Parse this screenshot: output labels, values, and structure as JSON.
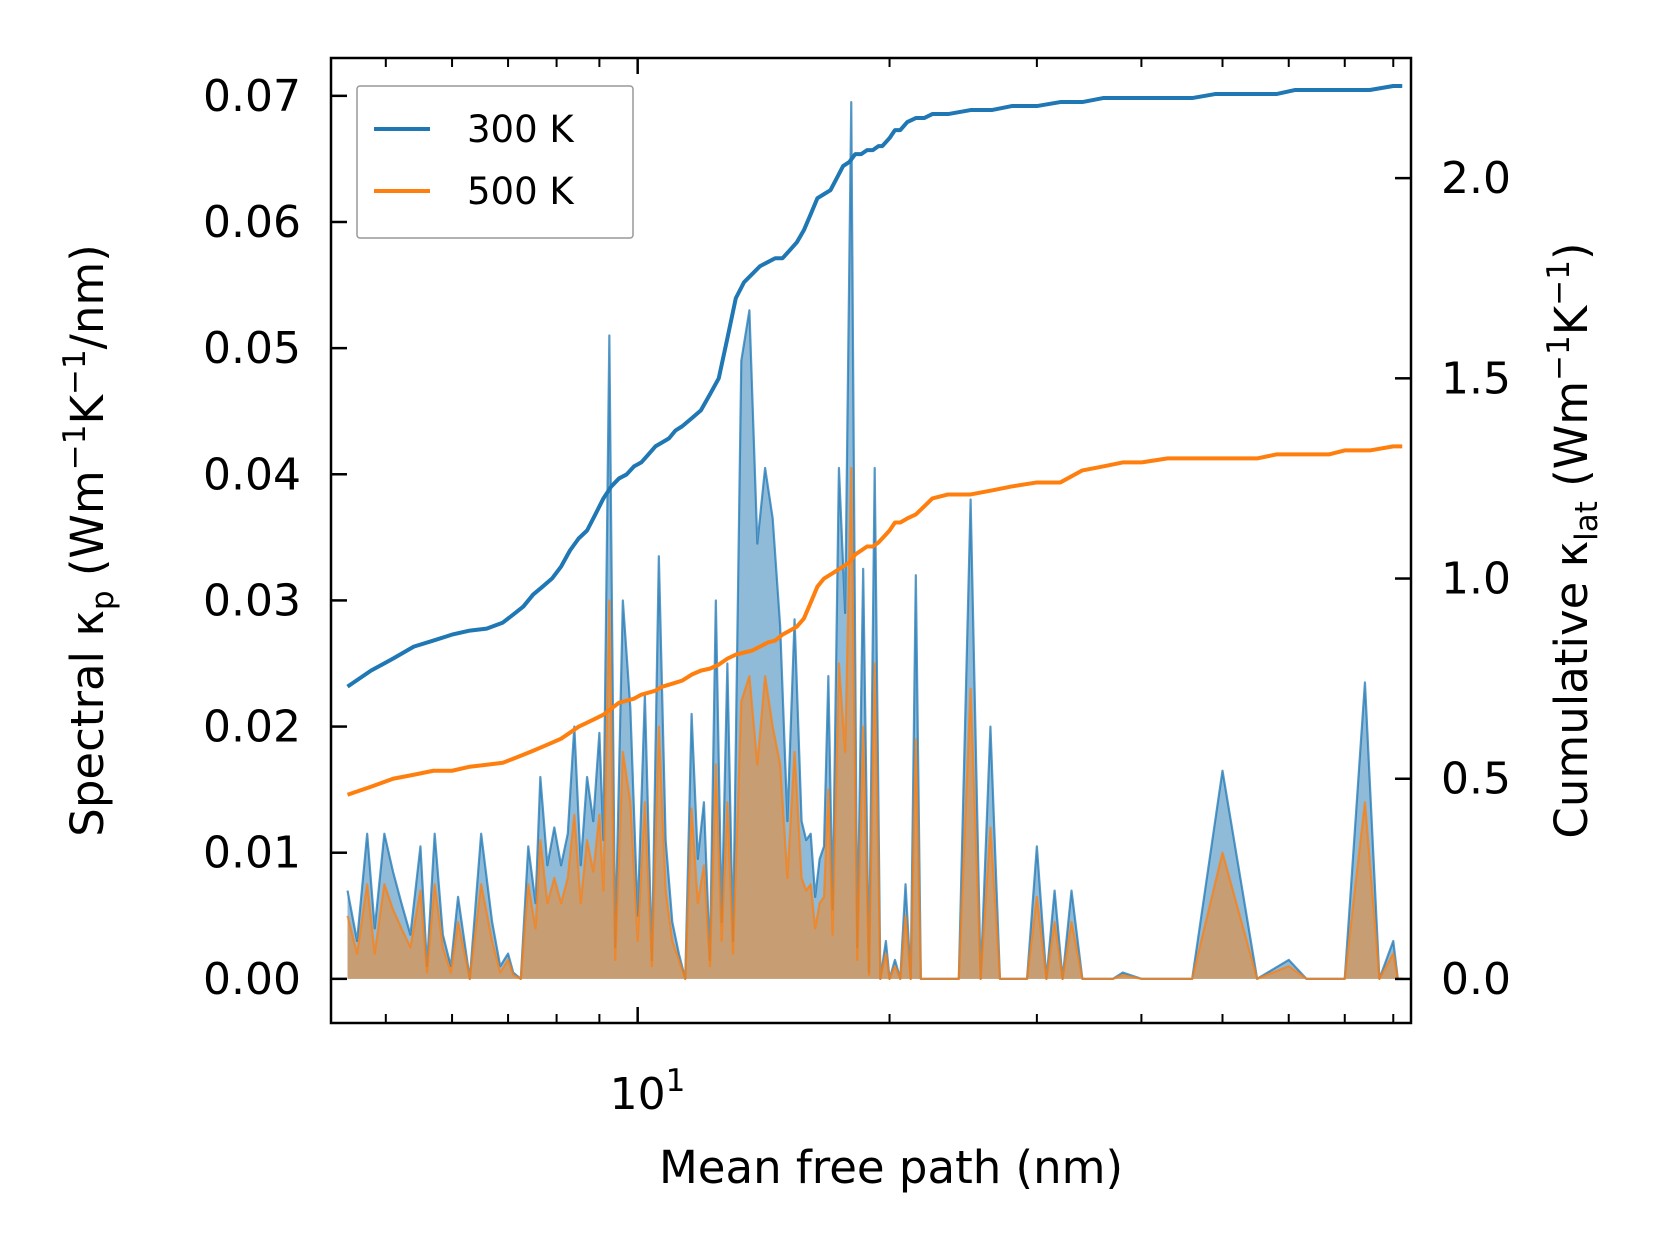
{
  "chart_data": {
    "type": "area",
    "xscale": "log",
    "xlim": [
      4.3,
      84
    ],
    "xlabel": "Mean free path (nm)",
    "x_tick_labels": [
      {
        "base": "10",
        "exp": "1",
        "value": 10
      }
    ],
    "left_axis": {
      "label_parts": [
        "Spectral ",
        "κ",
        "p",
        " (Wm",
        "−1",
        "K",
        "−1",
        "/nm)"
      ],
      "ylim": [
        -0.0035,
        0.073
      ],
      "ticks": [
        0,
        0.01,
        0.02,
        0.03,
        0.04,
        0.05,
        0.06,
        0.07
      ],
      "tick_labels": [
        "0.00",
        "0.01",
        "0.02",
        "0.03",
        "0.04",
        "0.05",
        "0.06",
        "0.07"
      ]
    },
    "right_axis": {
      "label_parts": [
        "Cumulative ",
        "κ",
        "lat",
        " (Wm",
        "−1",
        "K",
        "−1",
        ")"
      ],
      "ylim": [
        -0.11,
        2.3
      ],
      "ticks": [
        0,
        0.5,
        1.0,
        1.5,
        2.0
      ],
      "tick_labels": [
        "0.0",
        "0.5",
        "1.0",
        "1.5",
        "2.0"
      ]
    },
    "legend": {
      "location": "upper-left",
      "entries": [
        {
          "name": "300 K",
          "color": "#1f77b4"
        },
        {
          "name": "500 K",
          "color": "#ff7f0e"
        }
      ]
    },
    "series": [
      {
        "name": "300 K",
        "color": "#1f77b4",
        "spectral": {
          "x": [
            4.5,
            4.62,
            4.75,
            4.85,
            4.98,
            5.1,
            5.22,
            5.35,
            5.5,
            5.6,
            5.72,
            5.85,
            5.98,
            6.1,
            6.3,
            6.5,
            6.7,
            6.85,
            7.0,
            7.1,
            7.25,
            7.4,
            7.55,
            7.65,
            7.8,
            7.95,
            8.1,
            8.25,
            8.4,
            8.55,
            8.7,
            8.85,
            9.0,
            9.1,
            9.25,
            9.4,
            9.6,
            9.8,
            10.0,
            10.2,
            10.4,
            10.6,
            10.8,
            11.0,
            11.2,
            11.4,
            11.6,
            11.8,
            12.0,
            12.2,
            12.4,
            12.6,
            12.8,
            13.0,
            13.3,
            13.6,
            13.9,
            14.2,
            14.5,
            14.8,
            15.1,
            15.4,
            15.7,
            15.9,
            16.1,
            16.3,
            16.5,
            16.7,
            16.9,
            17.1,
            17.4,
            17.7,
            18.0,
            18.3,
            18.6,
            18.9,
            19.2,
            19.5,
            19.8,
            20.0,
            20.3,
            20.6,
            20.9,
            21.2,
            21.5,
            21.8,
            22.1,
            22.4,
            22.8,
            23.5,
            24.2,
            25.0,
            25.7,
            26.4,
            27.1,
            27.8,
            28.5,
            29.2,
            30.0,
            30.8,
            31.5,
            32.2,
            33.0,
            34.0,
            35.0,
            36.0,
            37.0,
            38.0,
            40.0,
            42.0,
            44.0,
            46.0,
            50.0,
            55.0,
            60.0,
            63.0,
            65.0,
            66.5,
            68.0,
            70.0,
            74.0,
            77.0,
            80.0,
            81.0,
            82.0
          ],
          "y": [
            0.007,
            0.003,
            0.0115,
            0.004,
            0.0115,
            0.0085,
            0.006,
            0.0035,
            0.0105,
            0.001,
            0.0115,
            0.0035,
            0.001,
            0.0065,
            0.0,
            0.0115,
            0.0045,
            0.001,
            0.002,
            0.0005,
            0.0,
            0.0105,
            0.006,
            0.016,
            0.009,
            0.012,
            0.009,
            0.0115,
            0.02,
            0.009,
            0.016,
            0.0125,
            0.0195,
            0.011,
            0.051,
            0.0025,
            0.03,
            0.0215,
            0.005,
            0.0225,
            0.0015,
            0.0335,
            0.011,
            0.0045,
            0.002,
            0.0,
            0.021,
            0.0095,
            0.014,
            0.0015,
            0.03,
            0.0045,
            0.025,
            0.003,
            0.049,
            0.053,
            0.0345,
            0.0405,
            0.0365,
            0.028,
            0.0125,
            0.0285,
            0.0125,
            0.011,
            0.0115,
            0.0065,
            0.0095,
            0.0105,
            0.024,
            0.0055,
            0.0405,
            0.029,
            0.0695,
            0.0025,
            0.0325,
            0.0005,
            0.0405,
            0.0,
            0.003,
            0.0,
            0.0015,
            0.0,
            0.0075,
            0.0,
            0.032,
            0.0,
            0.0,
            0.0,
            0.0,
            0.0,
            0.0,
            0.038,
            0.0,
            0.02,
            0.0,
            0.0,
            0.0,
            0.0,
            0.0105,
            0.0,
            0.007,
            0.0,
            0.007,
            0.0,
            0.0,
            0.0,
            0.0,
            0.0005,
            0.0,
            0.0,
            0.0,
            0.0,
            0.0165,
            0.0,
            0.0015,
            0.0,
            0.0,
            0.0,
            0.0,
            0.0,
            0.0235,
            0.0,
            0.003,
            0.0,
            0.0
          ]
        },
        "cumulative": {
          "x": [
            4.5,
            4.8,
            5.1,
            5.4,
            5.7,
            6.0,
            6.3,
            6.6,
            6.9,
            7.1,
            7.3,
            7.5,
            7.7,
            7.9,
            8.1,
            8.3,
            8.5,
            8.7,
            8.9,
            9.1,
            9.3,
            9.5,
            9.7,
            9.9,
            10.1,
            10.3,
            10.5,
            10.7,
            10.9,
            11.1,
            11.3,
            11.6,
            11.9,
            12.2,
            12.5,
            12.8,
            13.1,
            13.4,
            13.7,
            14.0,
            14.3,
            14.6,
            14.9,
            15.2,
            15.5,
            15.8,
            16.1,
            16.4,
            16.7,
            17.0,
            17.3,
            17.6,
            17.9,
            18.2,
            18.5,
            18.8,
            19.1,
            19.4,
            19.6,
            19.8,
            20.0,
            20.3,
            20.6,
            21.0,
            21.5,
            22.0,
            22.5,
            23.5,
            25.0,
            26.5,
            28.0,
            30.0,
            32.0,
            34.0,
            36.0,
            38.0,
            40.0,
            43.0,
            46.0,
            49.0,
            52.0,
            55.0,
            58.0,
            61.0,
            64.0,
            67.0,
            70.0,
            75.0,
            80.0,
            82.0
          ],
          "y": [
            0.73,
            0.77,
            0.8,
            0.83,
            0.845,
            0.86,
            0.87,
            0.875,
            0.89,
            0.91,
            0.93,
            0.96,
            0.98,
            1.0,
            1.03,
            1.07,
            1.1,
            1.12,
            1.16,
            1.2,
            1.23,
            1.25,
            1.26,
            1.28,
            1.29,
            1.31,
            1.33,
            1.34,
            1.35,
            1.37,
            1.38,
            1.4,
            1.42,
            1.46,
            1.5,
            1.6,
            1.7,
            1.74,
            1.76,
            1.78,
            1.79,
            1.8,
            1.8,
            1.82,
            1.84,
            1.87,
            1.91,
            1.95,
            1.96,
            1.97,
            2.0,
            2.03,
            2.04,
            2.06,
            2.06,
            2.07,
            2.07,
            2.08,
            2.08,
            2.09,
            2.1,
            2.12,
            2.12,
            2.14,
            2.15,
            2.15,
            2.16,
            2.16,
            2.17,
            2.17,
            2.18,
            2.18,
            2.19,
            2.19,
            2.2,
            2.2,
            2.2,
            2.2,
            2.2,
            2.21,
            2.21,
            2.21,
            2.21,
            2.22,
            2.22,
            2.22,
            2.22,
            2.22,
            2.23,
            2.23
          ]
        }
      },
      {
        "name": "500 K",
        "color": "#ff7f0e",
        "spectral": {
          "x": [
            4.5,
            4.62,
            4.75,
            4.85,
            4.98,
            5.1,
            5.22,
            5.35,
            5.5,
            5.6,
            5.72,
            5.85,
            5.98,
            6.1,
            6.3,
            6.5,
            6.7,
            6.85,
            7.0,
            7.1,
            7.25,
            7.4,
            7.55,
            7.65,
            7.8,
            7.95,
            8.1,
            8.25,
            8.4,
            8.55,
            8.7,
            8.85,
            9.0,
            9.1,
            9.25,
            9.4,
            9.6,
            9.8,
            10.0,
            10.2,
            10.4,
            10.6,
            10.8,
            11.0,
            11.2,
            11.4,
            11.6,
            11.8,
            12.0,
            12.2,
            12.4,
            12.6,
            12.8,
            13.0,
            13.3,
            13.6,
            13.9,
            14.2,
            14.5,
            14.8,
            15.1,
            15.4,
            15.7,
            15.9,
            16.1,
            16.3,
            16.5,
            16.7,
            16.9,
            17.1,
            17.4,
            17.7,
            18.0,
            18.3,
            18.6,
            18.9,
            19.2,
            19.5,
            19.8,
            20.0,
            20.3,
            20.6,
            20.9,
            21.2,
            21.5,
            21.8,
            22.1,
            22.4,
            22.8,
            23.5,
            24.2,
            25.0,
            25.7,
            26.4,
            27.1,
            27.8,
            28.5,
            29.2,
            30.0,
            30.8,
            31.5,
            32.2,
            33.0,
            34.0,
            35.0,
            36.0,
            37.0,
            38.0,
            40.0,
            42.0,
            44.0,
            46.0,
            50.0,
            55.0,
            60.0,
            63.0,
            65.0,
            66.5,
            68.0,
            70.0,
            74.0,
            77.0,
            80.0,
            81.0,
            82.0
          ],
          "y": [
            0.005,
            0.002,
            0.0075,
            0.002,
            0.0075,
            0.0055,
            0.004,
            0.0025,
            0.007,
            0.0005,
            0.0075,
            0.0025,
            0.0005,
            0.0045,
            0.0,
            0.0075,
            0.003,
            0.0005,
            0.0015,
            0.0003,
            0.0,
            0.0075,
            0.004,
            0.011,
            0.006,
            0.008,
            0.006,
            0.008,
            0.013,
            0.006,
            0.011,
            0.0085,
            0.013,
            0.007,
            0.03,
            0.0015,
            0.018,
            0.014,
            0.003,
            0.014,
            0.001,
            0.02,
            0.007,
            0.003,
            0.0015,
            0.0,
            0.0135,
            0.006,
            0.009,
            0.001,
            0.017,
            0.003,
            0.014,
            0.002,
            0.022,
            0.024,
            0.017,
            0.024,
            0.02,
            0.017,
            0.008,
            0.018,
            0.008,
            0.007,
            0.0075,
            0.004,
            0.006,
            0.0065,
            0.015,
            0.0035,
            0.025,
            0.018,
            0.0405,
            0.0015,
            0.02,
            0.0003,
            0.025,
            0.0,
            0.002,
            0.0,
            0.001,
            0.0,
            0.005,
            0.0,
            0.019,
            0.0,
            0.0,
            0.0,
            0.0,
            0.0,
            0.0,
            0.023,
            0.0,
            0.012,
            0.0,
            0.0,
            0.0,
            0.0,
            0.0065,
            0.0,
            0.0045,
            0.0,
            0.0045,
            0.0,
            0.0,
            0.0,
            0.0,
            0.0003,
            0.0,
            0.0,
            0.0,
            0.0,
            0.01,
            0.0,
            0.001,
            0.0,
            0.0,
            0.0,
            0.0,
            0.0,
            0.014,
            0.0,
            0.002,
            0.0,
            0.0
          ]
        },
        "cumulative": {
          "x": [
            4.5,
            4.8,
            5.1,
            5.4,
            5.7,
            6.0,
            6.3,
            6.6,
            6.9,
            7.1,
            7.3,
            7.5,
            7.7,
            7.9,
            8.1,
            8.3,
            8.5,
            8.7,
            8.9,
            9.1,
            9.3,
            9.5,
            9.7,
            9.9,
            10.1,
            10.3,
            10.5,
            10.7,
            10.9,
            11.1,
            11.3,
            11.6,
            11.9,
            12.2,
            12.5,
            12.8,
            13.1,
            13.4,
            13.7,
            14.0,
            14.3,
            14.6,
            14.9,
            15.2,
            15.5,
            15.8,
            16.1,
            16.4,
            16.7,
            17.0,
            17.3,
            17.6,
            17.9,
            18.2,
            18.5,
            18.8,
            19.1,
            19.4,
            19.6,
            19.8,
            20.0,
            20.3,
            20.6,
            21.0,
            21.5,
            22.0,
            22.5,
            23.5,
            25.0,
            26.5,
            28.0,
            30.0,
            32.0,
            34.0,
            36.0,
            38.0,
            40.0,
            43.0,
            46.0,
            49.0,
            52.0,
            55.0,
            58.0,
            61.0,
            64.0,
            67.0,
            70.0,
            75.0,
            80.0,
            82.0
          ],
          "y": [
            0.46,
            0.48,
            0.5,
            0.51,
            0.52,
            0.52,
            0.53,
            0.535,
            0.54,
            0.55,
            0.56,
            0.57,
            0.58,
            0.59,
            0.6,
            0.615,
            0.63,
            0.64,
            0.65,
            0.66,
            0.675,
            0.69,
            0.695,
            0.7,
            0.71,
            0.715,
            0.72,
            0.73,
            0.735,
            0.74,
            0.745,
            0.76,
            0.77,
            0.775,
            0.785,
            0.8,
            0.81,
            0.815,
            0.82,
            0.83,
            0.84,
            0.845,
            0.86,
            0.87,
            0.88,
            0.9,
            0.94,
            0.98,
            1.0,
            1.01,
            1.02,
            1.03,
            1.04,
            1.06,
            1.07,
            1.08,
            1.08,
            1.09,
            1.1,
            1.11,
            1.12,
            1.14,
            1.14,
            1.15,
            1.16,
            1.18,
            1.2,
            1.21,
            1.21,
            1.22,
            1.23,
            1.24,
            1.24,
            1.27,
            1.28,
            1.29,
            1.29,
            1.3,
            1.3,
            1.3,
            1.3,
            1.3,
            1.31,
            1.31,
            1.31,
            1.31,
            1.32,
            1.32,
            1.33,
            1.33
          ]
        }
      }
    ]
  }
}
